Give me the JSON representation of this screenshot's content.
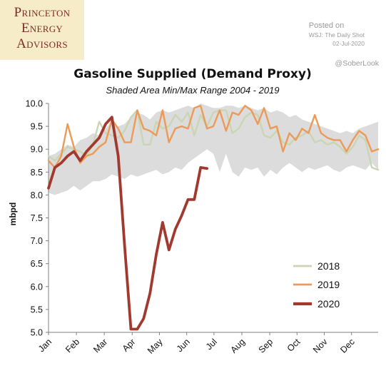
{
  "branding": {
    "logo_lines": [
      "Princeton",
      "Energy",
      "Advisors"
    ],
    "posted_on": "Posted on",
    "source": "WSJ: The Daily Shot",
    "date": "02-Jul-2020",
    "handle": "@SoberLook"
  },
  "colors": {
    "band": "#dcdcdc",
    "s2018": "#c9d5b3",
    "s2019": "#ec9a58",
    "s2020": "#a2392f"
  },
  "chart_data": {
    "type": "line",
    "title": "Gasoline Supplied (Demand Proxy)",
    "subtitle": "Shaded Area Min/Max Range 2004 - 2019",
    "xlabel": "",
    "ylabel": "mbpd",
    "xlim": [
      1,
      53
    ],
    "ylim": [
      5.0,
      10.0
    ],
    "yticks": [
      "5.0",
      "5.5",
      "6.0",
      "6.5",
      "7.0",
      "7.5",
      "8.0",
      "8.5",
      "9.0",
      "9.5",
      "10.0"
    ],
    "month_labels": [
      "Jan",
      "Feb",
      "Mar",
      "Apr",
      "May",
      "Jun",
      "Jul",
      "Aug",
      "Sep",
      "Oct",
      "Nov",
      "Dec"
    ],
    "month_week": [
      1,
      5.4,
      9.8,
      14.2,
      18.5,
      22.8,
      27.1,
      31.5,
      35.9,
      40.2,
      44.5,
      48.8
    ],
    "legend_position": "lower-right",
    "shaded_range": {
      "name": "Min/Max 2004 - 2019",
      "week": [
        1,
        2,
        3,
        4,
        5,
        6,
        7,
        8,
        9,
        10,
        11,
        12,
        13,
        14,
        15,
        16,
        17,
        18,
        19,
        20,
        21,
        22,
        23,
        24,
        25,
        26,
        27,
        28,
        29,
        30,
        31,
        32,
        33,
        34,
        35,
        36,
        37,
        38,
        39,
        40,
        41,
        42,
        43,
        44,
        45,
        46,
        47,
        48,
        49,
        50,
        51,
        52,
        53
      ],
      "min": [
        8.05,
        8.0,
        8.05,
        8.1,
        8.2,
        8.1,
        8.2,
        8.3,
        8.3,
        8.35,
        8.45,
        8.4,
        8.35,
        8.45,
        8.4,
        8.45,
        8.5,
        8.55,
        8.45,
        8.5,
        8.6,
        8.55,
        8.7,
        8.8,
        8.9,
        9.0,
        8.9,
        8.5,
        8.9,
        8.5,
        8.4,
        8.6,
        8.55,
        8.6,
        8.4,
        8.55,
        8.45,
        8.6,
        8.7,
        8.6,
        8.5,
        8.6,
        8.55,
        8.6,
        8.65,
        8.55,
        8.5,
        8.6,
        8.65,
        8.6,
        8.55,
        8.7,
        8.55
      ],
      "max": [
        8.85,
        8.9,
        9.0,
        9.1,
        9.05,
        9.2,
        9.25,
        9.35,
        9.3,
        9.45,
        9.6,
        9.5,
        9.55,
        9.7,
        9.8,
        9.75,
        9.65,
        9.8,
        9.85,
        9.8,
        9.85,
        9.9,
        9.95,
        9.9,
        10.0,
        9.95,
        9.9,
        9.9,
        9.95,
        9.95,
        9.9,
        9.95,
        9.9,
        9.85,
        9.9,
        9.8,
        9.85,
        9.8,
        9.7,
        9.75,
        9.65,
        9.6,
        9.55,
        9.5,
        9.45,
        9.4,
        9.35,
        9.4,
        9.35,
        9.45,
        9.5,
        9.55,
        9.6
      ]
    },
    "series": [
      {
        "name": "2018",
        "week": [
          1,
          2,
          3,
          4,
          5,
          6,
          7,
          8,
          9,
          10,
          11,
          12,
          13,
          14,
          15,
          16,
          17,
          18,
          19,
          20,
          21,
          22,
          23,
          24,
          25,
          26,
          27,
          28,
          29,
          30,
          31,
          32,
          33,
          34,
          35,
          36,
          37,
          38,
          39,
          40,
          41,
          42,
          43,
          44,
          45,
          46,
          47,
          48,
          49,
          50,
          51,
          52,
          53
        ],
        "values": [
          8.85,
          8.75,
          8.9,
          9.05,
          9.0,
          8.95,
          8.85,
          9.1,
          9.6,
          9.35,
          9.3,
          9.25,
          9.4,
          9.7,
          9.85,
          9.1,
          9.1,
          9.6,
          9.45,
          9.5,
          9.75,
          9.6,
          9.8,
          9.3,
          9.75,
          9.5,
          9.8,
          9.85,
          9.85,
          9.35,
          9.45,
          9.7,
          9.8,
          9.75,
          9.3,
          9.25,
          9.4,
          9.15,
          9.1,
          9.25,
          9.3,
          9.4,
          9.15,
          9.2,
          9.1,
          9.15,
          9.05,
          8.9,
          9.05,
          9.3,
          9.2,
          8.6,
          8.55
        ]
      },
      {
        "name": "2019",
        "week": [
          1,
          2,
          3,
          4,
          5,
          6,
          7,
          8,
          9,
          10,
          11,
          12,
          13,
          14,
          15,
          16,
          17,
          18,
          19,
          20,
          21,
          22,
          23,
          24,
          25,
          26,
          27,
          28,
          29,
          30,
          31,
          32,
          33,
          34,
          35,
          36,
          37,
          38,
          39,
          40,
          41,
          42,
          43,
          44,
          45,
          46,
          47,
          48,
          49,
          50,
          51,
          52,
          53
        ],
        "values": [
          8.75,
          8.6,
          8.85,
          9.55,
          9.05,
          8.7,
          8.85,
          8.9,
          9.05,
          9.15,
          9.65,
          9.45,
          9.15,
          9.15,
          9.85,
          9.45,
          9.4,
          9.3,
          9.85,
          9.15,
          9.45,
          9.5,
          9.45,
          9.9,
          9.95,
          9.45,
          9.5,
          9.85,
          9.4,
          9.8,
          9.75,
          9.95,
          9.85,
          9.55,
          9.9,
          9.45,
          9.5,
          8.95,
          9.35,
          9.2,
          9.45,
          9.35,
          9.75,
          9.35,
          9.25,
          9.2,
          9.2,
          8.95,
          9.2,
          9.4,
          9.3,
          8.95,
          9.0
        ]
      },
      {
        "name": "2020",
        "week": [
          1,
          2,
          3,
          4,
          5,
          6,
          7,
          8,
          9,
          10,
          11,
          12,
          13,
          14,
          15,
          16,
          17,
          18,
          19,
          20,
          21,
          22,
          23,
          24,
          25,
          26
        ],
        "values": [
          8.15,
          8.6,
          8.7,
          8.85,
          8.95,
          8.75,
          8.95,
          9.1,
          9.25,
          9.55,
          9.7,
          8.85,
          6.9,
          5.07,
          5.07,
          5.3,
          5.85,
          6.7,
          7.4,
          6.8,
          7.25,
          7.55,
          7.9,
          7.9,
          8.6,
          8.58
        ]
      }
    ]
  }
}
